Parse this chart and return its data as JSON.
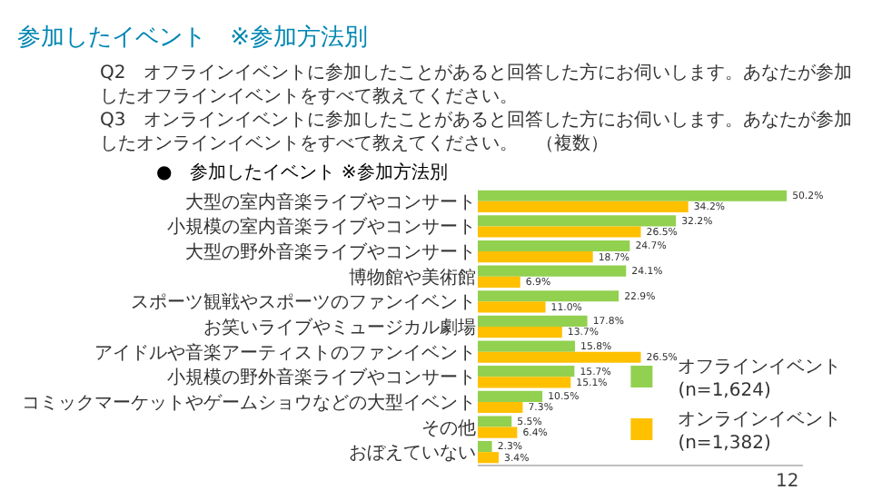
{
  "chart_data": {
    "type": "bar",
    "orientation": "horizontal",
    "title": "参加したイベント　※参加方法別",
    "subtitle": "Q2　オフラインイベントに参加したことがあると回答した方にお伺いします。あなたが参加したオフラインイベントをすべて教えてください。\nQ3　オンラインイベントに参加したことがあると回答した方にお伺いします。あなたが参加したオンラインイベントをすべて教えてください。　（複数）",
    "annotations": [
      "●　参加したイベント ※参加方法別",
      "12"
    ],
    "categories": [
      "大型の室内音楽ライブやコンサート",
      "小規模の室内音楽ライブやコンサート",
      "大型の野外音楽ライブやコンサート",
      "博物館や美術館",
      "スポーツ観戦やスポーツのファンイベント",
      "お笑いライブやミュージカル劇場",
      "アイドルや音楽アーティストのファンイベント",
      "小規模の野外音楽ライブやコンサート",
      "コミックマーケットやゲームショウなどの大型イベント",
      "その他",
      "おぼえていない"
    ],
    "series": [
      {
        "name": "オフラインイベント\n(n=1,624)",
        "color": "#92d050",
        "values": [
          50.2,
          32.2,
          24.7,
          24.1,
          22.9,
          17.8,
          15.8,
          15.7,
          10.5,
          5.5,
          2.3
        ],
        "value_labels": [
          "50.2%",
          "32.2%",
          "24.7%",
          "24.1%",
          "22.9%",
          "17.8%",
          "15.8%",
          "15.7%",
          "10.5%",
          "5.5%",
          "2.3%"
        ]
      },
      {
        "name": "オンラインイベント\n(n=1,382)",
        "color": "#ffc000",
        "values": [
          34.2,
          26.5,
          18.7,
          6.9,
          11.0,
          13.7,
          26.5,
          15.1,
          7.3,
          6.4,
          3.4
        ],
        "value_labels": [
          "34.2%",
          "26.5%",
          "18.7%",
          "6.9%",
          "11.0%",
          "13.7%",
          "26.5%",
          "15.1%",
          "7.3%",
          "6.4%",
          "3.4%"
        ]
      }
    ],
    "legend": "right",
    "relative": false
  }
}
